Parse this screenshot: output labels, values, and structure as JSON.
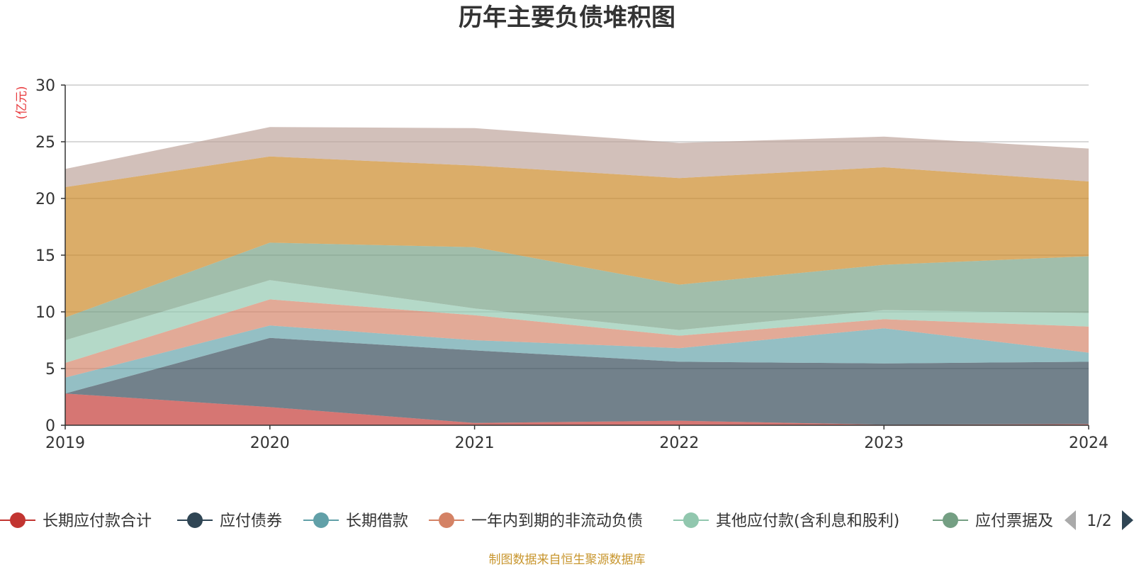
{
  "chart_data": {
    "type": "area",
    "stacked": true,
    "title": "历年主要负债堆积图",
    "unit_label": "(亿元)",
    "x": [
      "2019",
      "2020",
      "2021",
      "2022",
      "2023",
      "2024"
    ],
    "ylim": [
      0,
      30
    ],
    "yticks": [
      "0",
      "5",
      "10",
      "15",
      "20",
      "25",
      "30"
    ],
    "grid": true,
    "legend_position": "bottom",
    "series": [
      {
        "name": "长期应付款合计",
        "color": "#c23531",
        "values": [
          2.8,
          1.6,
          0.2,
          0.4,
          0.05,
          0.1
        ]
      },
      {
        "name": "应付债券",
        "color": "#2f4554",
        "values": [
          0.0,
          6.1,
          6.4,
          5.2,
          5.4,
          5.5
        ]
      },
      {
        "name": "长期借款",
        "color": "#61a0a8",
        "values": [
          1.4,
          1.1,
          0.9,
          1.2,
          3.1,
          0.8
        ]
      },
      {
        "name": "一年内到期的非流动负债",
        "color": "#d48265",
        "values": [
          1.3,
          2.3,
          2.2,
          1.1,
          0.8,
          2.3
        ]
      },
      {
        "name": "其他应付款(含利息和股利)",
        "color": "#91c7ae",
        "values": [
          2.0,
          1.7,
          0.6,
          0.5,
          0.8,
          1.2
        ]
      },
      {
        "name": "应付票据及应付账款",
        "color": "#749f83",
        "values": [
          2.0,
          3.3,
          5.4,
          4.0,
          4.0,
          5.0
        ]
      },
      {
        "name": "",
        "color": "#ca8622",
        "values": [
          11.5,
          7.6,
          7.2,
          9.4,
          8.6,
          6.6
        ]
      },
      {
        "name": "",
        "color": "#bda29a",
        "values": [
          1.6,
          2.6,
          3.3,
          3.1,
          2.7,
          2.9
        ]
      }
    ]
  },
  "legend": {
    "visible_items": [
      "长期应付款合计",
      "应付债券",
      "长期借款",
      "一年内到期的非流动负债",
      "其他应付款(含利息和股利)",
      "应付票据及"
    ],
    "page_indicator": "1/2",
    "prev_icon": "triangle-left-icon",
    "next_icon": "triangle-right-icon"
  },
  "footer": {
    "source_text": "制图数据来自恒生聚源数据库"
  }
}
